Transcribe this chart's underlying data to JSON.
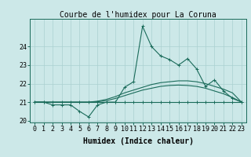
{
  "title": "Courbe de l'humidex pour La Coruna",
  "xlabel": "Humidex (Indice chaleur)",
  "background_color": "#cce8e8",
  "grid_color": "#aad0d0",
  "line_color": "#1a6b5a",
  "hours": [
    0,
    1,
    2,
    3,
    4,
    5,
    6,
    7,
    8,
    9,
    10,
    11,
    12,
    13,
    14,
    15,
    16,
    17,
    18,
    19,
    20,
    21,
    22,
    23
  ],
  "line_main": [
    21.0,
    21.0,
    20.85,
    20.85,
    20.85,
    20.5,
    20.2,
    20.85,
    21.0,
    21.0,
    21.8,
    22.1,
    25.1,
    24.0,
    23.5,
    23.3,
    23.0,
    23.35,
    22.8,
    21.85,
    22.2,
    21.6,
    21.2,
    21.0
  ],
  "line_flat": [
    21.0,
    21.0,
    21.0,
    21.0,
    21.0,
    21.0,
    21.0,
    21.0,
    21.0,
    21.0,
    21.0,
    21.0,
    21.0,
    21.0,
    21.0,
    21.0,
    21.0,
    21.0,
    21.0,
    21.0,
    21.0,
    21.0,
    21.0,
    21.0
  ],
  "line_upper": [
    21.0,
    21.0,
    21.0,
    21.0,
    21.0,
    21.0,
    21.0,
    21.05,
    21.15,
    21.3,
    21.5,
    21.65,
    21.8,
    21.95,
    22.05,
    22.1,
    22.15,
    22.15,
    22.1,
    22.0,
    21.85,
    21.7,
    21.5,
    21.0
  ],
  "line_lower": [
    21.0,
    21.0,
    21.0,
    21.0,
    21.0,
    21.0,
    21.0,
    21.02,
    21.08,
    21.2,
    21.35,
    21.5,
    21.65,
    21.75,
    21.85,
    21.9,
    21.92,
    21.9,
    21.85,
    21.75,
    21.6,
    21.45,
    21.25,
    21.0
  ],
  "ylim": [
    19.9,
    25.5
  ],
  "yticks": [
    20,
    21,
    22,
    23,
    24
  ],
  "tick_fontsize": 6,
  "label_fontsize": 7,
  "title_fontsize": 7
}
